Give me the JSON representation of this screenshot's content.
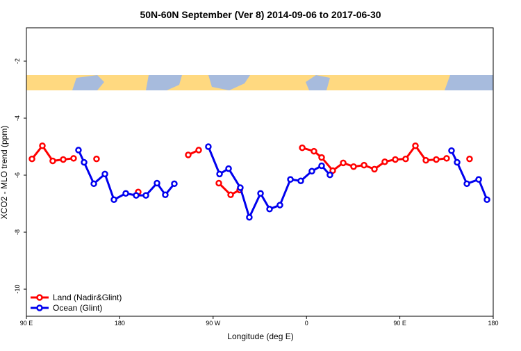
{
  "chart_data": {
    "type": "line",
    "title": "50N-60N September (Ver 8)   2014-09-06 to 2017-06-30",
    "x_label": "Longitude (deg E)",
    "y_label": "XCO2 - MLO trend (ppm)",
    "xlim": [
      90,
      540
    ],
    "ylim": [
      -10.95,
      -0.83
    ],
    "xticks": [
      {
        "value": 90,
        "label": "90 E"
      },
      180,
      {
        "value": 270,
        "label": "90 W"
      },
      {
        "value": 360,
        "label": "0"
      },
      {
        "value": 450,
        "label": "90 E"
      },
      {
        "value": 540,
        "label": "180"
      }
    ],
    "yticks": [
      -2,
      -4,
      -6,
      -8,
      -10
    ],
    "legend": "bottom-left",
    "series": [
      {
        "name": "Land (Nadir&Glint)",
        "color": "#ff0000",
        "x": [
          95.4,
          105.4,
          115.4,
          125.5,
          135.5,
          null,
          157.6,
          null,
          197.8,
          null,
          246.0,
          256.1,
          null,
          275.5,
          286.9,
          295.6,
          null,
          355.9,
          367.2,
          374.6,
          385.3,
          395.4,
          405.4,
          415.5,
          425.5,
          435.5,
          445.6,
          455.6,
          465.0,
          475.1,
          485.1,
          495.1,
          null,
          517.2
        ],
        "values": [
          -5.43,
          -4.97,
          -5.5,
          -5.45,
          -5.41,
          null,
          -5.43,
          null,
          -6.59,
          null,
          -5.29,
          -5.12,
          null,
          -6.28,
          -6.69,
          -6.52,
          null,
          -5.04,
          -5.16,
          -5.38,
          -5.84,
          -5.57,
          -5.7,
          -5.65,
          -5.79,
          -5.53,
          -5.45,
          -5.43,
          -4.97,
          -5.48,
          -5.45,
          -5.41,
          null,
          -5.43
        ]
      },
      {
        "name": "Ocean (Glint)",
        "color": "#0000ee",
        "x": [
          140.2,
          145.6,
          155.0,
          165.7,
          174.4,
          185.8,
          195.8,
          205.2,
          215.9,
          223.9,
          232.6,
          null,
          265.4,
          276.2,
          284.9,
          296.2,
          304.9,
          315.7,
          324.4,
          334.4,
          344.5,
          354.5,
          365.2,
          374.6,
          382.6,
          null,
          499.8,
          505.2,
          514.6,
          526.0,
          534.0
        ],
        "values": [
          -5.12,
          -5.55,
          -6.3,
          -5.96,
          -6.86,
          -6.64,
          -6.71,
          -6.71,
          -6.28,
          -6.69,
          -6.3,
          null,
          -5.0,
          -5.96,
          -5.77,
          -6.44,
          -7.48,
          -6.64,
          -7.19,
          -7.05,
          -6.15,
          -6.2,
          -5.86,
          -5.67,
          -5.99,
          null,
          -5.14,
          -5.55,
          -6.3,
          -6.15,
          -6.86
        ]
      }
    ]
  }
}
